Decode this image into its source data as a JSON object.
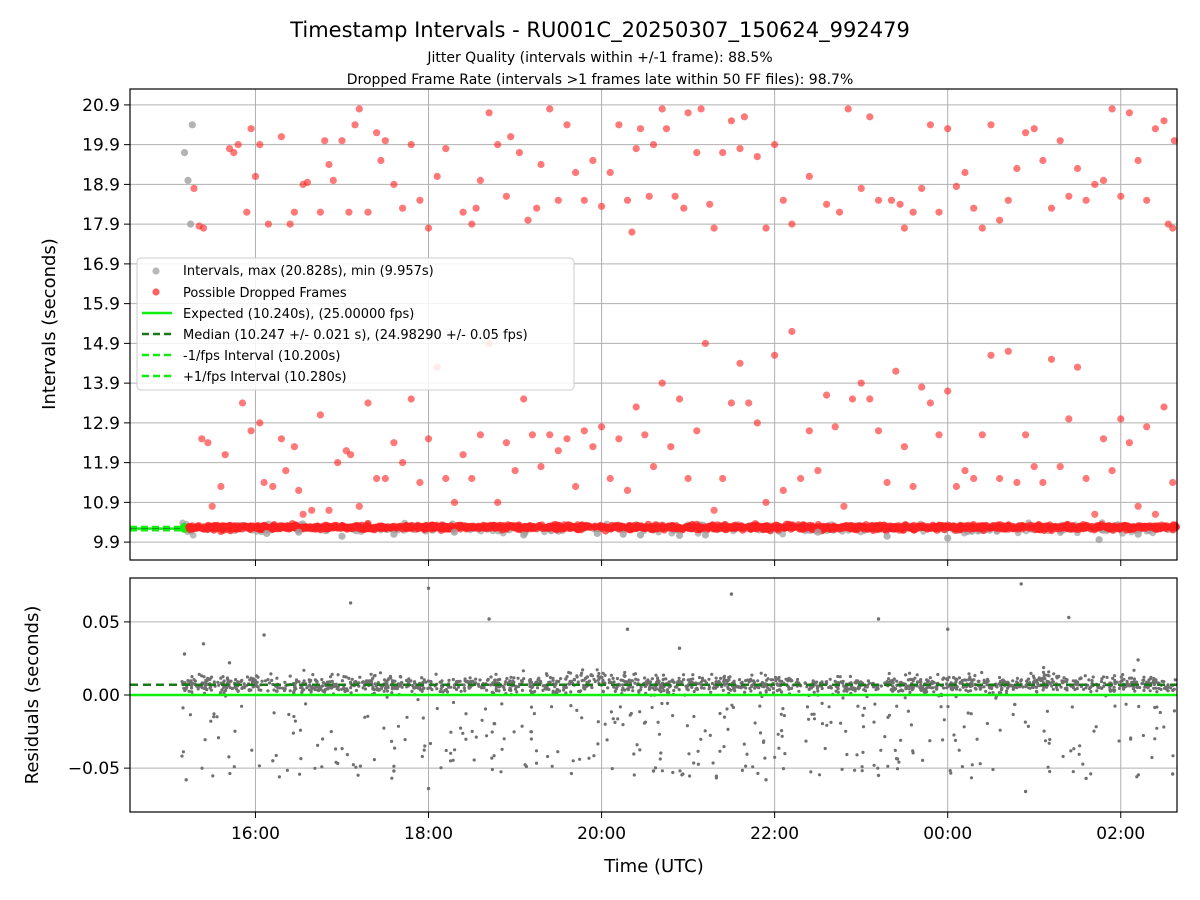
{
  "colors": {
    "all_points": "#a0a0a0",
    "dropped": "#ff2020",
    "expected": "#10ee10",
    "median": "#1a7a1a",
    "fps_band": "#10ee10",
    "residuals": "#707070",
    "grid": "#b0b0b0"
  },
  "chart_data": [
    {
      "type": "scatter",
      "title": "Timestamp Intervals - RU001C_20250307_150624_992479",
      "subtitle_1": "Jitter Quality (intervals within +/-1 frame): 88.5%",
      "subtitle_2": "Dropped Frame Rate (intervals >1 frames late within 50 FF files): 98.7%",
      "xlabel": "",
      "ylabel": "Intervals (seconds)",
      "x_range_hours": [
        14.55,
        26.65
      ],
      "ylim": [
        9.45,
        21.3
      ],
      "yticks": [
        "9.9",
        "10.9",
        "11.9",
        "12.9",
        "13.9",
        "14.9",
        "15.9",
        "16.9",
        "17.9",
        "18.9",
        "19.9",
        "20.9"
      ],
      "ytick_values": [
        9.9,
        10.9,
        11.9,
        12.9,
        13.9,
        14.9,
        15.9,
        16.9,
        17.9,
        18.9,
        19.9,
        20.9
      ],
      "grid": true,
      "legend_position": "center-left",
      "legend": [
        {
          "label": "Intervals, max (20.828s), min (9.957s)",
          "kind": "marker",
          "color_key": "all_points"
        },
        {
          "label": "Possible Dropped Frames",
          "kind": "marker",
          "color_key": "dropped"
        },
        {
          "label": "Expected (10.240s), (25.00000 fps)",
          "kind": "line",
          "color_key": "expected"
        },
        {
          "label": "Median (10.247 +/- 0.021 s), (24.98290 +/- 0.05 fps)",
          "kind": "dashed",
          "color_key": "median"
        },
        {
          "label": "-1/fps Interval (10.200s)",
          "kind": "dashed",
          "color_key": "fps_band"
        },
        {
          "label": "+1/fps Interval (10.280s)",
          "kind": "dashed",
          "color_key": "fps_band"
        }
      ],
      "expected_interval": 10.24,
      "median_interval": 10.247,
      "minus_fps_interval": 10.2,
      "plus_fps_interval": 10.28,
      "series_points": {
        "gray_intervals": [
          [
            15.18,
            19.7
          ],
          [
            15.22,
            19.0
          ],
          [
            15.27,
            20.4
          ],
          [
            15.25,
            17.9
          ],
          [
            16.13,
            10.12
          ],
          [
            16.5,
            10.15
          ],
          [
            17.0,
            10.05
          ],
          [
            17.6,
            10.1
          ],
          [
            18.3,
            10.15
          ],
          [
            19.1,
            10.08
          ],
          [
            19.95,
            10.12
          ],
          [
            20.25,
            10.1
          ],
          [
            20.45,
            10.08
          ],
          [
            20.9,
            10.07
          ],
          [
            21.2,
            10.08
          ],
          [
            22.5,
            10.15
          ],
          [
            23.3,
            10.05
          ],
          [
            24.0,
            10.0
          ],
          [
            25.75,
            9.96
          ],
          [
            26.2,
            10.1
          ]
        ],
        "dropped_upper": [
          [
            15.29,
            18.8
          ],
          [
            15.35,
            17.85
          ],
          [
            15.4,
            17.8
          ],
          [
            15.7,
            19.8
          ],
          [
            15.75,
            19.7
          ],
          [
            15.8,
            19.9
          ],
          [
            15.9,
            18.2
          ],
          [
            15.95,
            20.3
          ],
          [
            16.0,
            19.1
          ],
          [
            16.05,
            19.9
          ],
          [
            16.15,
            17.9
          ],
          [
            16.3,
            20.1
          ],
          [
            16.4,
            17.9
          ],
          [
            16.45,
            18.2
          ],
          [
            16.55,
            18.9
          ],
          [
            16.6,
            18.95
          ],
          [
            16.75,
            18.2
          ],
          [
            16.8,
            20.0
          ],
          [
            16.85,
            19.4
          ],
          [
            16.9,
            19.0
          ],
          [
            17.0,
            20.0
          ],
          [
            17.08,
            18.2
          ],
          [
            17.15,
            20.4
          ],
          [
            17.2,
            20.8
          ],
          [
            17.3,
            18.2
          ],
          [
            17.4,
            20.2
          ],
          [
            17.45,
            19.5
          ],
          [
            17.5,
            20.0
          ],
          [
            17.6,
            18.9
          ],
          [
            17.7,
            18.3
          ],
          [
            17.8,
            19.9
          ],
          [
            17.9,
            18.5
          ],
          [
            18.0,
            17.8
          ],
          [
            18.1,
            19.1
          ],
          [
            18.2,
            19.8
          ],
          [
            18.4,
            18.2
          ],
          [
            18.5,
            17.9
          ],
          [
            18.55,
            18.3
          ],
          [
            18.6,
            19.0
          ],
          [
            18.7,
            20.7
          ],
          [
            18.8,
            19.9
          ],
          [
            18.9,
            18.6
          ],
          [
            18.95,
            20.1
          ],
          [
            19.05,
            19.7
          ],
          [
            19.15,
            18.0
          ],
          [
            19.25,
            18.3
          ],
          [
            19.3,
            19.4
          ],
          [
            19.4,
            20.8
          ],
          [
            19.5,
            18.5
          ],
          [
            19.6,
            20.4
          ],
          [
            19.7,
            19.2
          ],
          [
            19.8,
            18.5
          ],
          [
            19.9,
            19.5
          ],
          [
            20.0,
            18.35
          ],
          [
            20.1,
            19.2
          ],
          [
            20.2,
            20.4
          ],
          [
            20.3,
            18.5
          ],
          [
            20.35,
            17.7
          ],
          [
            20.4,
            19.8
          ],
          [
            20.45,
            20.3
          ],
          [
            20.55,
            18.6
          ],
          [
            20.6,
            19.9
          ],
          [
            20.7,
            20.8
          ],
          [
            20.75,
            20.3
          ],
          [
            20.85,
            18.6
          ],
          [
            20.95,
            18.3
          ],
          [
            21.0,
            20.7
          ],
          [
            21.1,
            19.7
          ],
          [
            21.15,
            20.8
          ],
          [
            21.25,
            18.4
          ],
          [
            21.3,
            17.8
          ],
          [
            21.4,
            19.7
          ],
          [
            21.5,
            20.5
          ],
          [
            21.6,
            19.8
          ],
          [
            21.65,
            20.6
          ],
          [
            21.8,
            19.6
          ],
          [
            21.9,
            17.8
          ],
          [
            22.0,
            19.9
          ],
          [
            22.1,
            18.5
          ],
          [
            22.2,
            17.9
          ],
          [
            22.4,
            19.1
          ],
          [
            22.6,
            18.4
          ],
          [
            22.75,
            18.2
          ],
          [
            22.85,
            20.8
          ],
          [
            23.0,
            18.8
          ],
          [
            23.1,
            20.6
          ],
          [
            23.2,
            18.5
          ],
          [
            23.35,
            18.5
          ],
          [
            23.45,
            18.4
          ],
          [
            23.5,
            17.8
          ],
          [
            23.6,
            18.2
          ],
          [
            23.7,
            18.8
          ],
          [
            23.8,
            20.4
          ],
          [
            23.9,
            18.2
          ],
          [
            24.0,
            20.3
          ],
          [
            24.1,
            18.85
          ],
          [
            24.2,
            19.2
          ],
          [
            24.3,
            18.3
          ],
          [
            24.4,
            17.8
          ],
          [
            24.5,
            20.4
          ],
          [
            24.6,
            18.0
          ],
          [
            24.7,
            18.5
          ],
          [
            24.8,
            19.3
          ],
          [
            24.9,
            20.2
          ],
          [
            25.0,
            20.3
          ],
          [
            25.1,
            19.5
          ],
          [
            25.2,
            18.3
          ],
          [
            25.3,
            20.0
          ],
          [
            25.4,
            18.6
          ],
          [
            25.5,
            19.3
          ],
          [
            25.6,
            18.5
          ],
          [
            25.7,
            18.9
          ],
          [
            25.8,
            19.0
          ],
          [
            25.9,
            20.8
          ],
          [
            26.0,
            18.6
          ],
          [
            26.1,
            20.7
          ],
          [
            26.2,
            19.5
          ],
          [
            26.3,
            18.5
          ],
          [
            26.4,
            20.3
          ],
          [
            26.5,
            20.5
          ],
          [
            26.55,
            17.9
          ],
          [
            26.6,
            17.8
          ],
          [
            26.62,
            20.0
          ]
        ],
        "dropped_lower": [
          [
            15.38,
            12.5
          ],
          [
            15.45,
            12.4
          ],
          [
            15.5,
            10.8
          ],
          [
            15.6,
            11.3
          ],
          [
            15.65,
            12.1
          ],
          [
            15.85,
            13.4
          ],
          [
            15.95,
            12.7
          ],
          [
            16.05,
            12.9
          ],
          [
            16.1,
            11.4
          ],
          [
            16.2,
            11.3
          ],
          [
            16.3,
            12.5
          ],
          [
            16.35,
            11.7
          ],
          [
            16.45,
            12.3
          ],
          [
            16.5,
            11.2
          ],
          [
            16.55,
            10.6
          ],
          [
            16.65,
            10.7
          ],
          [
            16.75,
            13.1
          ],
          [
            16.85,
            10.7
          ],
          [
            16.95,
            11.9
          ],
          [
            17.05,
            12.2
          ],
          [
            17.1,
            12.1
          ],
          [
            17.2,
            10.8
          ],
          [
            17.3,
            13.4
          ],
          [
            17.4,
            11.5
          ],
          [
            17.5,
            11.5
          ],
          [
            17.6,
            12.4
          ],
          [
            17.7,
            11.9
          ],
          [
            17.8,
            13.5
          ],
          [
            17.9,
            11.4
          ],
          [
            18.0,
            12.5
          ],
          [
            18.1,
            14.3
          ],
          [
            18.2,
            11.5
          ],
          [
            18.3,
            10.9
          ],
          [
            18.4,
            12.1
          ],
          [
            18.5,
            11.5
          ],
          [
            18.6,
            12.6
          ],
          [
            18.7,
            14.9
          ],
          [
            18.8,
            10.9
          ],
          [
            18.9,
            12.4
          ],
          [
            19.0,
            11.7
          ],
          [
            19.1,
            13.5
          ],
          [
            19.2,
            12.6
          ],
          [
            19.3,
            11.8
          ],
          [
            19.4,
            12.6
          ],
          [
            19.5,
            12.2
          ],
          [
            19.6,
            12.5
          ],
          [
            19.7,
            11.3
          ],
          [
            19.8,
            12.7
          ],
          [
            19.9,
            12.3
          ],
          [
            20.0,
            12.8
          ],
          [
            20.1,
            11.5
          ],
          [
            20.2,
            12.5
          ],
          [
            20.3,
            11.2
          ],
          [
            20.4,
            13.3
          ],
          [
            20.5,
            12.6
          ],
          [
            20.6,
            11.8
          ],
          [
            20.7,
            13.9
          ],
          [
            20.8,
            12.3
          ],
          [
            20.9,
            13.5
          ],
          [
            21.0,
            11.5
          ],
          [
            21.1,
            12.7
          ],
          [
            21.2,
            14.9
          ],
          [
            21.3,
            10.7
          ],
          [
            21.4,
            11.5
          ],
          [
            21.5,
            13.4
          ],
          [
            21.6,
            14.4
          ],
          [
            21.7,
            13.4
          ],
          [
            21.8,
            12.9
          ],
          [
            21.9,
            10.9
          ],
          [
            22.0,
            14.6
          ],
          [
            22.1,
            11.2
          ],
          [
            22.2,
            15.2
          ],
          [
            22.3,
            11.5
          ],
          [
            22.4,
            12.7
          ],
          [
            22.5,
            11.7
          ],
          [
            22.6,
            13.6
          ],
          [
            22.7,
            12.8
          ],
          [
            22.8,
            10.8
          ],
          [
            22.9,
            13.5
          ],
          [
            23.0,
            13.9
          ],
          [
            23.1,
            13.5
          ],
          [
            23.2,
            12.7
          ],
          [
            23.3,
            11.4
          ],
          [
            23.4,
            14.2
          ],
          [
            23.5,
            12.3
          ],
          [
            23.6,
            11.3
          ],
          [
            23.7,
            13.8
          ],
          [
            23.8,
            13.4
          ],
          [
            23.9,
            12.6
          ],
          [
            24.0,
            13.7
          ],
          [
            24.1,
            11.3
          ],
          [
            24.2,
            11.7
          ],
          [
            24.3,
            11.5
          ],
          [
            24.4,
            12.6
          ],
          [
            24.5,
            14.6
          ],
          [
            24.6,
            11.5
          ],
          [
            24.7,
            14.7
          ],
          [
            24.8,
            11.4
          ],
          [
            24.9,
            12.6
          ],
          [
            25.0,
            11.8
          ],
          [
            25.1,
            11.4
          ],
          [
            25.2,
            14.5
          ],
          [
            25.3,
            11.8
          ],
          [
            25.4,
            13.0
          ],
          [
            25.5,
            14.3
          ],
          [
            25.6,
            11.5
          ],
          [
            25.7,
            10.6
          ],
          [
            25.8,
            12.5
          ],
          [
            25.9,
            11.7
          ],
          [
            26.0,
            13.0
          ],
          [
            26.1,
            12.4
          ],
          [
            26.2,
            10.8
          ],
          [
            26.3,
            12.8
          ],
          [
            26.4,
            10.6
          ],
          [
            26.5,
            13.3
          ],
          [
            26.6,
            11.4
          ]
        ]
      }
    },
    {
      "type": "scatter",
      "title": "",
      "xlabel": "Time (UTC)",
      "ylabel": "Residuals (seconds)",
      "x_range_hours": [
        14.55,
        26.65
      ],
      "ylim": [
        -0.08,
        0.08
      ],
      "yticks": [
        "0.05",
        "0.00",
        "−0.05"
      ],
      "ytick_values": [
        0.05,
        0.0,
        -0.05
      ],
      "xticks": [
        "16:00",
        "18:00",
        "20:00",
        "22:00",
        "00:00",
        "02:00"
      ],
      "xtick_hours": [
        16,
        18,
        20,
        22,
        24,
        26
      ],
      "grid": true,
      "expected_residual": 0.0,
      "median_residual": 0.007,
      "outliers": [
        [
          15.18,
          0.028
        ],
        [
          15.4,
          0.035
        ],
        [
          15.7,
          0.022
        ],
        [
          16.1,
          0.041
        ],
        [
          17.1,
          0.063
        ],
        [
          18.0,
          0.073
        ],
        [
          18.7,
          0.052
        ],
        [
          20.3,
          0.045
        ],
        [
          20.9,
          0.032
        ],
        [
          21.5,
          0.069
        ],
        [
          23.2,
          0.052
        ],
        [
          24.0,
          0.045
        ],
        [
          24.85,
          0.076
        ],
        [
          25.4,
          0.053
        ],
        [
          26.2,
          0.024
        ],
        [
          15.2,
          -0.058
        ],
        [
          16.2,
          -0.045
        ],
        [
          17.6,
          -0.052
        ],
        [
          18.0,
          -0.064
        ],
        [
          20.6,
          -0.052
        ],
        [
          21.9,
          -0.058
        ],
        [
          23.2,
          -0.055
        ],
        [
          24.9,
          -0.066
        ],
        [
          25.6,
          -0.057
        ],
        [
          26.6,
          -0.054
        ]
      ]
    }
  ]
}
